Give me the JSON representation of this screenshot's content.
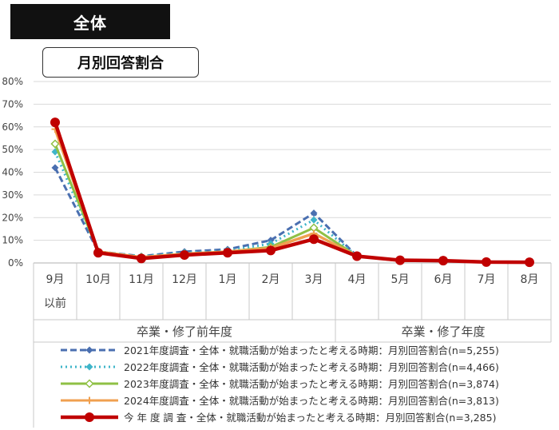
{
  "header": {
    "title": "全体"
  },
  "chart_data": {
    "type": "line",
    "title": "月別回答割合",
    "categories": [
      "9月",
      "10月",
      "11月",
      "12月",
      "1月",
      "2月",
      "3月",
      "4月",
      "5月",
      "6月",
      "7月",
      "8月"
    ],
    "category_sublabels": [
      "以前",
      "",
      "",
      "",
      "",
      "",
      "",
      "",
      "",
      "",
      "",
      ""
    ],
    "groups": [
      {
        "label": "卒業・修了前年度",
        "span": 7
      },
      {
        "label": "卒業・修了年度",
        "span": 5
      }
    ],
    "ylim": [
      0,
      80
    ],
    "yticks": [
      "0%",
      "10%",
      "20%",
      "30%",
      "40%",
      "50%",
      "60%",
      "70%",
      "80%"
    ],
    "grid": true,
    "legend_position": "bottom",
    "series": [
      {
        "name": "2021年度調査・全体・就職活動が始まったと考える時期：月別回答割合(n=5,255)",
        "color": "#4a6fb0",
        "style": "dashed",
        "marker": "diamond",
        "values": [
          42,
          5,
          3,
          5,
          6,
          10,
          22,
          3,
          1,
          1,
          0.5,
          0.3
        ]
      },
      {
        "name": "2022年度調査・全体・就職活動が始まったと考える時期：月別回答割合(n=4,466)",
        "color": "#3fb5c9",
        "style": "dotted",
        "marker": "diamond",
        "values": [
          49,
          5,
          3,
          4.5,
          5.5,
          8.5,
          19,
          3,
          1,
          1,
          0.5,
          0.3
        ]
      },
      {
        "name": "2023年度調査・全体・就職活動が始まったと考える時期：月別回答割合(n=3,874)",
        "color": "#8fc045",
        "style": "solid",
        "marker": "diamond-open",
        "values": [
          52.5,
          5,
          2.5,
          4,
          5,
          7,
          15.5,
          3,
          1,
          1,
          0.5,
          0.3
        ]
      },
      {
        "name": "2024年度調査・全体・就職活動が始まったと考える時期：月別回答割合(n=3,813)",
        "color": "#f0a050",
        "style": "solid",
        "marker": "plus",
        "values": [
          59,
          5,
          2.5,
          4,
          5,
          6.5,
          13,
          3,
          1,
          1,
          0.5,
          0.3
        ]
      },
      {
        "name": "今 年 度 調 査・全体・就職活動が始まったと考える時期：月別回答割合(n=3,285)",
        "color": "#c00000",
        "style": "solid",
        "marker": "circle",
        "values": [
          62,
          4.5,
          2,
          3.5,
          4.5,
          5.5,
          10.5,
          3,
          1.2,
          1,
          0.4,
          0.3
        ]
      }
    ]
  }
}
